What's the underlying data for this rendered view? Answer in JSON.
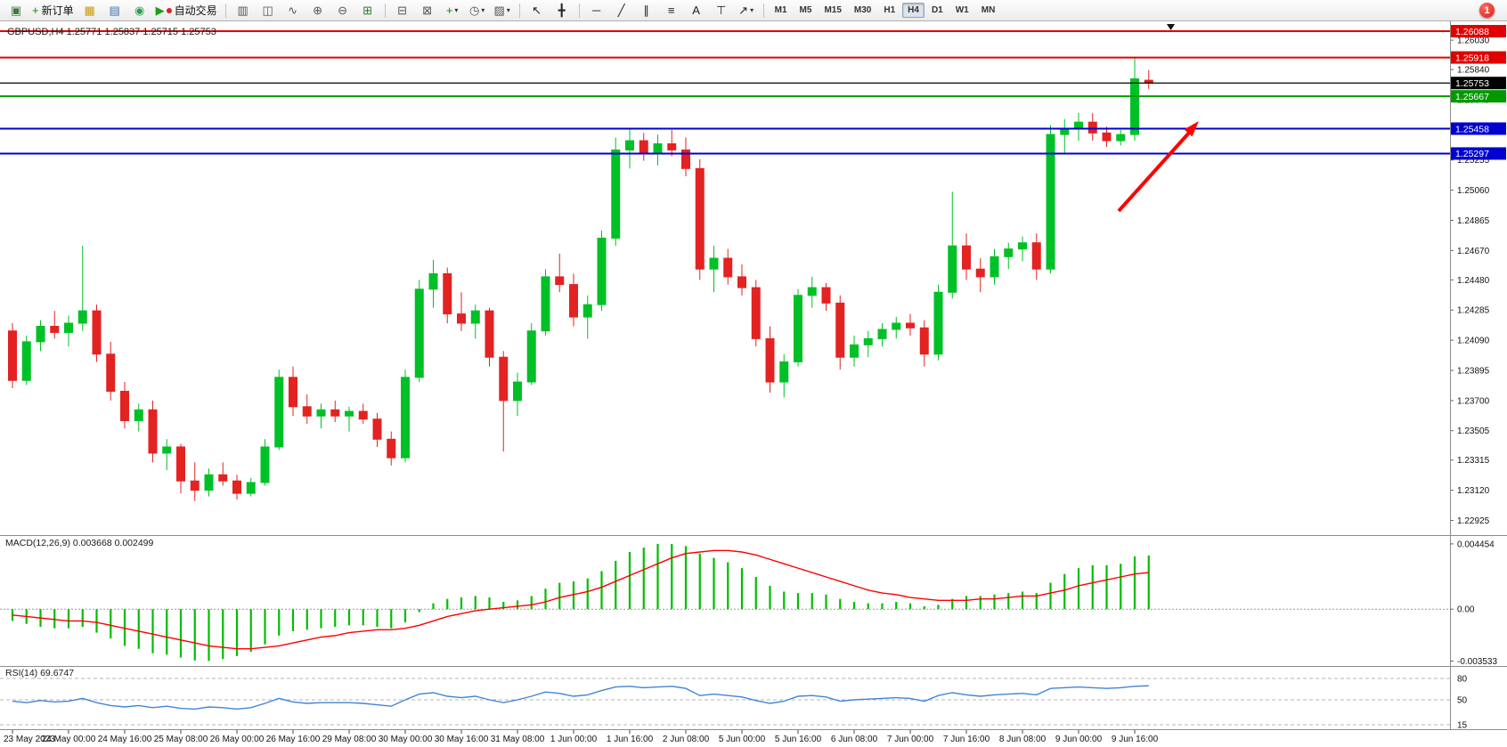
{
  "toolbar": {
    "items": [
      {
        "type": "button",
        "name": "new-chart",
        "glyph": "▣",
        "glyph_color": "#3a7a3a"
      },
      {
        "type": "button",
        "name": "new-order",
        "glyph": "+",
        "glyph_color": "#0a8f0a",
        "label": "新订单"
      },
      {
        "type": "button",
        "name": "market-watch",
        "glyph": "▦",
        "glyph_color": "#c79810"
      },
      {
        "type": "button",
        "name": "data-window",
        "glyph": "▤",
        "glyph_color": "#3c6eb4"
      },
      {
        "type": "button",
        "name": "navigator",
        "glyph": "◉",
        "glyph_color": "#2c9e4b"
      },
      {
        "type": "button",
        "name": "autotrading",
        "glyph": "▶",
        "glyph_color": "#18a018",
        "label": "自动交易",
        "dot": "#e02020"
      },
      {
        "type": "sep"
      },
      {
        "type": "button",
        "name": "bar-chart-mode",
        "glyph": "▥",
        "glyph_color": "#555555"
      },
      {
        "type": "button",
        "name": "candlestick-mode",
        "glyph": "◫",
        "glyph_color": "#555555"
      },
      {
        "type": "button",
        "name": "line-chart-mode",
        "glyph": "∿",
        "glyph_color": "#555555"
      },
      {
        "type": "button",
        "name": "zoom-in",
        "glyph": "⊕",
        "glyph_color": "#555555"
      },
      {
        "type": "button",
        "name": "zoom-out",
        "glyph": "⊖",
        "glyph_color": "#555555"
      },
      {
        "type": "button",
        "name": "tile-windows",
        "glyph": "⊞",
        "glyph_color": "#2c7a2c"
      },
      {
        "type": "sep"
      },
      {
        "type": "button",
        "name": "arrange-windows",
        "glyph": "⊟",
        "glyph_color": "#555555"
      },
      {
        "type": "button",
        "name": "cascade-windows",
        "glyph": "⊠",
        "glyph_color": "#555555"
      },
      {
        "type": "button",
        "name": "indicators",
        "glyph": "+",
        "glyph_color": "#0a8f0a",
        "caret": true
      },
      {
        "type": "button",
        "name": "periods",
        "glyph": "◷",
        "glyph_color": "#555555",
        "caret": true
      },
      {
        "type": "button",
        "name": "templates",
        "glyph": "▨",
        "glyph_color": "#555555",
        "caret": true
      },
      {
        "type": "sep"
      },
      {
        "type": "button",
        "name": "cursor-tool",
        "glyph": "↖",
        "glyph_color": "#222222"
      },
      {
        "type": "button",
        "name": "crosshair-tool",
        "glyph": "╋",
        "glyph_color": "#222222"
      },
      {
        "type": "sep"
      },
      {
        "type": "button",
        "name": "horizontal-line-tool",
        "glyph": "─",
        "glyph_color": "#222222"
      },
      {
        "type": "button",
        "name": "trendline-tool",
        "glyph": "╱",
        "glyph_color": "#222222"
      },
      {
        "type": "button",
        "name": "channel-tool",
        "glyph": "∥",
        "glyph_color": "#222222"
      },
      {
        "type": "button",
        "name": "fibonacci-tool",
        "glyph": "≡",
        "glyph_color": "#222222"
      },
      {
        "type": "button",
        "name": "text-tool",
        "glyph": "A",
        "glyph_color": "#222222"
      },
      {
        "type": "button",
        "name": "text-label-tool",
        "glyph": "⊤",
        "glyph_color": "#222222"
      },
      {
        "type": "button",
        "name": "arrows-shapes",
        "glyph": "↗",
        "glyph_color": "#222222",
        "caret": true
      },
      {
        "type": "sep"
      },
      {
        "type": "timeframes"
      }
    ],
    "timeframes": [
      "M1",
      "M5",
      "M15",
      "M30",
      "H1",
      "H4",
      "D1",
      "W1",
      "MN"
    ],
    "active_timeframe": "H4",
    "notification_count": "1"
  },
  "chart_data": [
    {
      "type": "candlestick",
      "title": "GBPUSD,H4 1.25771 1.25837 1.25715 1.25753",
      "symbol": "GBPUSD",
      "timeframe": "H4",
      "ohlc_display": {
        "open": "1.25771",
        "high": "1.25837",
        "low": "1.25715",
        "close": "1.25753"
      },
      "bull_color": "#00c027",
      "bear_color": "#e32222",
      "ylim": [
        1.2283,
        1.2614
      ],
      "y_ticks": [
        "1.26030",
        "1.25840",
        "1.25645",
        "1.25450",
        "1.25255",
        "1.25060",
        "1.24865",
        "1.24670",
        "1.24480",
        "1.24285",
        "1.24090",
        "1.23895",
        "1.23700",
        "1.23505",
        "1.23315",
        "1.23120",
        "1.22925"
      ],
      "hlines": [
        {
          "price": 1.26088,
          "label": "1.26088",
          "color": "#e00000"
        },
        {
          "price": 1.25918,
          "label": "1.25918",
          "color": "#e00000"
        },
        {
          "price": 1.25753,
          "label": "1.25753",
          "color": "#000000",
          "role": "current-price"
        },
        {
          "price": 1.25667,
          "label": "1.25667",
          "color": "#009a00"
        },
        {
          "price": 1.25458,
          "label": "1.25458",
          "color": "#0000d0"
        },
        {
          "price": 1.25297,
          "label": "1.25297",
          "color": "#0000d0"
        }
      ],
      "annotations": [
        {
          "type": "arrow",
          "color": "#ff0000",
          "direction": "up-right"
        }
      ],
      "candles": [
        [
          1.2415,
          1.242,
          1.2378,
          1.2383
        ],
        [
          1.2383,
          1.2412,
          1.238,
          1.2408
        ],
        [
          1.2408,
          1.2422,
          1.2402,
          1.2418
        ],
        [
          1.2418,
          1.2428,
          1.241,
          1.2414
        ],
        [
          1.2414,
          1.2425,
          1.2405,
          1.242
        ],
        [
          1.242,
          1.247,
          1.2415,
          1.2428
        ],
        [
          1.2428,
          1.2432,
          1.2395,
          1.24
        ],
        [
          1.24,
          1.2408,
          1.237,
          1.2376
        ],
        [
          1.2376,
          1.2382,
          1.2352,
          1.2357
        ],
        [
          1.2357,
          1.2368,
          1.235,
          1.2364
        ],
        [
          1.2364,
          1.237,
          1.233,
          1.2336
        ],
        [
          1.2336,
          1.2345,
          1.2325,
          1.234
        ],
        [
          1.234,
          1.2342,
          1.231,
          1.2318
        ],
        [
          1.2318,
          1.233,
          1.2305,
          1.2312
        ],
        [
          1.2312,
          1.2326,
          1.2308,
          1.2322
        ],
        [
          1.2322,
          1.233,
          1.2315,
          1.2318
        ],
        [
          1.2318,
          1.2322,
          1.2306,
          1.231
        ],
        [
          1.231,
          1.232,
          1.2308,
          1.2317
        ],
        [
          1.2317,
          1.2345,
          1.2315,
          1.234
        ],
        [
          1.234,
          1.239,
          1.2338,
          1.2385
        ],
        [
          1.2385,
          1.2392,
          1.236,
          1.2366
        ],
        [
          1.2366,
          1.2374,
          1.2355,
          1.236
        ],
        [
          1.236,
          1.2368,
          1.2352,
          1.2364
        ],
        [
          1.2364,
          1.237,
          1.2356,
          1.236
        ],
        [
          1.236,
          1.2366,
          1.235,
          1.2363
        ],
        [
          1.2363,
          1.2368,
          1.2355,
          1.2358
        ],
        [
          1.2358,
          1.2362,
          1.234,
          1.2345
        ],
        [
          1.2345,
          1.235,
          1.2328,
          1.2333
        ],
        [
          1.2333,
          1.239,
          1.233,
          1.2385
        ],
        [
          1.2385,
          1.2448,
          1.2382,
          1.2442
        ],
        [
          1.2442,
          1.2461,
          1.243,
          1.2452
        ],
        [
          1.2452,
          1.2456,
          1.242,
          1.2426
        ],
        [
          1.2426,
          1.244,
          1.2415,
          1.242
        ],
        [
          1.242,
          1.2432,
          1.241,
          1.2428
        ],
        [
          1.2428,
          1.243,
          1.2392,
          1.2398
        ],
        [
          1.2398,
          1.2402,
          1.2337,
          1.237
        ],
        [
          1.237,
          1.2388,
          1.236,
          1.2382
        ],
        [
          1.2382,
          1.242,
          1.238,
          1.2415
        ],
        [
          1.2415,
          1.2455,
          1.2412,
          1.245
        ],
        [
          1.245,
          1.2465,
          1.244,
          1.2445
        ],
        [
          1.2445,
          1.2452,
          1.2418,
          1.2424
        ],
        [
          1.2424,
          1.2438,
          1.241,
          1.2432
        ],
        [
          1.2432,
          1.248,
          1.2428,
          1.2475
        ],
        [
          1.2475,
          1.254,
          1.247,
          1.2532
        ],
        [
          1.2532,
          1.2546,
          1.252,
          1.2538
        ],
        [
          1.2538,
          1.2543,
          1.2525,
          1.253
        ],
        [
          1.253,
          1.2542,
          1.2522,
          1.2536
        ],
        [
          1.2536,
          1.2545,
          1.2528,
          1.2532
        ],
        [
          1.2532,
          1.254,
          1.2515,
          1.252
        ],
        [
          1.252,
          1.2526,
          1.2448,
          1.2455
        ],
        [
          1.2455,
          1.247,
          1.244,
          1.2462
        ],
        [
          1.2462,
          1.2468,
          1.2445,
          1.245
        ],
        [
          1.245,
          1.2458,
          1.2438,
          1.2443
        ],
        [
          1.2443,
          1.2448,
          1.2405,
          1.241
        ],
        [
          1.241,
          1.2418,
          1.2375,
          1.2382
        ],
        [
          1.2382,
          1.24,
          1.2372,
          1.2395
        ],
        [
          1.2395,
          1.2442,
          1.2392,
          1.2438
        ],
        [
          1.2438,
          1.245,
          1.243,
          1.2443
        ],
        [
          1.2443,
          1.2446,
          1.2428,
          1.2433
        ],
        [
          1.2433,
          1.2438,
          1.239,
          1.2398
        ],
        [
          1.2398,
          1.2412,
          1.2392,
          1.2406
        ],
        [
          1.2406,
          1.2415,
          1.2398,
          1.241
        ],
        [
          1.241,
          1.242,
          1.2405,
          1.2416
        ],
        [
          1.2416,
          1.2424,
          1.241,
          1.242
        ],
        [
          1.242,
          1.2426,
          1.2412,
          1.2417
        ],
        [
          1.2417,
          1.2422,
          1.2392,
          1.24
        ],
        [
          1.24,
          1.2445,
          1.2396,
          1.244
        ],
        [
          1.244,
          1.2505,
          1.2436,
          1.247
        ],
        [
          1.247,
          1.2478,
          1.2448,
          1.2455
        ],
        [
          1.2455,
          1.2462,
          1.244,
          1.245
        ],
        [
          1.245,
          1.2468,
          1.2445,
          1.2463
        ],
        [
          1.2463,
          1.2472,
          1.2455,
          1.2468
        ],
        [
          1.2468,
          1.2476,
          1.246,
          1.2472
        ],
        [
          1.2472,
          1.2478,
          1.2448,
          1.2455
        ],
        [
          1.2455,
          1.2548,
          1.2452,
          1.2542
        ],
        [
          1.2542,
          1.2552,
          1.253,
          1.2546
        ],
        [
          1.2546,
          1.2556,
          1.2538,
          1.255
        ],
        [
          1.255,
          1.2556,
          1.2538,
          1.2543
        ],
        [
          1.2543,
          1.2547,
          1.2534,
          1.2538
        ],
        [
          1.2538,
          1.2545,
          1.2535,
          1.2542
        ],
        [
          1.2542,
          1.2592,
          1.2538,
          1.2578
        ],
        [
          1.25771,
          1.25837,
          1.25715,
          1.25753
        ]
      ],
      "time_labels": [
        {
          "index": 0,
          "label": "23 May 2023"
        },
        {
          "index": 4,
          "label": "24 May 00:00"
        },
        {
          "index": 8,
          "label": "24 May 16:00"
        },
        {
          "index": 12,
          "label": "25 May 08:00"
        },
        {
          "index": 16,
          "label": "26 May 00:00"
        },
        {
          "index": 20,
          "label": "26 May 16:00"
        },
        {
          "index": 24,
          "label": "29 May 08:00"
        },
        {
          "index": 28,
          "label": "30 May 00:00"
        },
        {
          "index": 32,
          "label": "30 May 16:00"
        },
        {
          "index": 36,
          "label": "31 May 08:00"
        },
        {
          "index": 40,
          "label": "1 Jun 00:00"
        },
        {
          "index": 44,
          "label": "1 Jun 16:00"
        },
        {
          "index": 48,
          "label": "2 Jun 08:00"
        },
        {
          "index": 52,
          "label": "5 Jun 00:00"
        },
        {
          "index": 56,
          "label": "5 Jun 16:00"
        },
        {
          "index": 60,
          "label": "6 Jun 08:00"
        },
        {
          "index": 64,
          "label": "7 Jun 00:00"
        },
        {
          "index": 68,
          "label": "7 Jun 16:00"
        },
        {
          "index": 72,
          "label": "8 Jun 08:00"
        },
        {
          "index": 76,
          "label": "9 Jun 00:00"
        },
        {
          "index": 80,
          "label": "9 Jun 16:00"
        }
      ]
    },
    {
      "type": "bar",
      "name": "MACD",
      "params": "12,26,9",
      "label": "MACD(12,26,9) 0.003668 0.002499",
      "value": "0.003668",
      "signal_value": "0.002499",
      "histogram_color": "#00be00",
      "signal_color": "#ff0000",
      "ylim": [
        -0.00375,
        0.00475
      ],
      "y_ticks": [
        "0.004454",
        "0.00",
        "-0.003533"
      ],
      "histogram": [
        -0.0008,
        -0.001,
        -0.0012,
        -0.0013,
        -0.0013,
        -0.0012,
        -0.0016,
        -0.002,
        -0.0025,
        -0.0027,
        -0.003,
        -0.0031,
        -0.0033,
        -0.0035,
        -0.00353,
        -0.0034,
        -0.0032,
        -0.0029,
        -0.0024,
        -0.0018,
        -0.0015,
        -0.0014,
        -0.0013,
        -0.0012,
        -0.0011,
        -0.0011,
        -0.0012,
        -0.0013,
        -0.0009,
        -0.0002,
        0.0004,
        0.0007,
        0.0008,
        0.0009,
        0.0008,
        0.0005,
        0.0006,
        0.0009,
        0.0014,
        0.0018,
        0.0019,
        0.0021,
        0.0026,
        0.0033,
        0.0039,
        0.0042,
        0.004454,
        0.00445,
        0.0043,
        0.0038,
        0.0035,
        0.0032,
        0.0028,
        0.0022,
        0.0016,
        0.0012,
        0.0011,
        0.0011,
        0.001,
        0.0007,
        0.0005,
        0.0004,
        0.0004,
        0.0005,
        0.0004,
        0.0002,
        0.0003,
        0.0007,
        0.0009,
        0.0009,
        0.001,
        0.0011,
        0.0012,
        0.0011,
        0.0018,
        0.0024,
        0.0028,
        0.003,
        0.003,
        0.0031,
        0.0036,
        0.003668
      ],
      "signal": [
        -0.0004,
        -0.0005,
        -0.0006,
        -0.0007,
        -0.0008,
        -0.0008,
        -0.0009,
        -0.0011,
        -0.0013,
        -0.0015,
        -0.0017,
        -0.0019,
        -0.0021,
        -0.0023,
        -0.0025,
        -0.0026,
        -0.0027,
        -0.0027,
        -0.0026,
        -0.0025,
        -0.0023,
        -0.0021,
        -0.0019,
        -0.0018,
        -0.0016,
        -0.0015,
        -0.0014,
        -0.0014,
        -0.0013,
        -0.0011,
        -0.0008,
        -0.0005,
        -0.0003,
        -0.0001,
        0.0,
        0.0001,
        0.0002,
        0.0003,
        0.0005,
        0.0008,
        0.001,
        0.0012,
        0.0015,
        0.0019,
        0.0023,
        0.0027,
        0.0031,
        0.0035,
        0.0038,
        0.0039,
        0.004,
        0.004,
        0.0039,
        0.0037,
        0.0034,
        0.0031,
        0.0028,
        0.0025,
        0.0022,
        0.0019,
        0.0016,
        0.0013,
        0.0011,
        0.001,
        0.0008,
        0.0007,
        0.0006,
        0.0006,
        0.0006,
        0.0007,
        0.0007,
        0.0008,
        0.0009,
        0.0009,
        0.0011,
        0.0013,
        0.0016,
        0.0018,
        0.002,
        0.0022,
        0.0024,
        0.002499
      ]
    },
    {
      "type": "line",
      "name": "RSI",
      "params": "14",
      "label": "RSI(14) 69.6747",
      "value": "69.6747",
      "line_color": "#4186d6",
      "ylim": [
        10,
        95
      ],
      "levels": [
        80,
        50,
        15
      ],
      "values": [
        48,
        46,
        49,
        47,
        48,
        52,
        46,
        42,
        40,
        42,
        39,
        41,
        38,
        37,
        40,
        39,
        37,
        39,
        45,
        52,
        47,
        45,
        46,
        46,
        46,
        45,
        43,
        41,
        50,
        58,
        60,
        55,
        53,
        55,
        50,
        46,
        50,
        55,
        61,
        59,
        55,
        57,
        63,
        68,
        69,
        67,
        68,
        69,
        66,
        56,
        58,
        56,
        54,
        49,
        45,
        48,
        55,
        56,
        54,
        48,
        50,
        51,
        52,
        53,
        52,
        48,
        56,
        60,
        57,
        55,
        57,
        58,
        59,
        57,
        66,
        67,
        68,
        67,
        66,
        67,
        69,
        69.6747
      ]
    }
  ]
}
